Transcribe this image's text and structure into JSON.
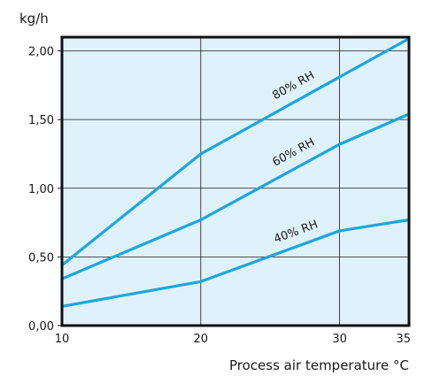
{
  "chart_data": {
    "type": "line",
    "ylabel": "kg/h",
    "xlabel": "Process air temperature °C",
    "x_ticks": [
      "10",
      "20",
      "30",
      "35"
    ],
    "y_ticks": [
      "0,00",
      "0,50",
      "1,00",
      "1,50",
      "2,00"
    ],
    "xlim": [
      10,
      35
    ],
    "ylim": [
      0,
      2.1
    ],
    "grid": true,
    "background_color": "#dff2fb",
    "line_color": "#1ba6dc",
    "grid_color": "#1a1a1a",
    "series": [
      {
        "name": "80% RH",
        "x": [
          10,
          20,
          30,
          35
        ],
        "y": [
          0.44,
          1.25,
          1.81,
          2.09
        ]
      },
      {
        "name": "60% RH",
        "x": [
          10,
          20,
          30,
          35
        ],
        "y": [
          0.34,
          0.77,
          1.32,
          1.54
        ]
      },
      {
        "name": "40% RH",
        "x": [
          10,
          20,
          30,
          35
        ],
        "y": [
          0.14,
          0.32,
          0.69,
          0.77
        ]
      }
    ]
  }
}
